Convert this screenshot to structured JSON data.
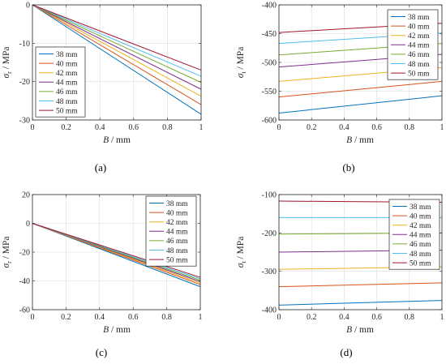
{
  "figure": {
    "panels": [
      "(a)",
      "(b)",
      "(c)",
      "(d)"
    ]
  },
  "colors": [
    "#0072bd",
    "#d95319",
    "#edb120",
    "#7e2f8e",
    "#77ac30",
    "#4dbeee",
    "#a2142f"
  ],
  "chart_data": [
    {
      "id": "a",
      "type": "line",
      "panel_label": "(a)",
      "xlabel_main": "B",
      "xlabel_unit": " / mm",
      "ylabel_main": "σ",
      "ylabel_sub": "r",
      "ylabel_unit": " / MPa",
      "xlim": [
        0,
        1
      ],
      "ylim": [
        -30,
        0
      ],
      "xticks": [
        0,
        0.2,
        0.4,
        0.6,
        0.8,
        1
      ],
      "xtick_labels": [
        "0",
        "0.2",
        "0.4",
        "0.6",
        "0.8",
        "1"
      ],
      "yticks": [
        0,
        -10,
        -20,
        -30
      ],
      "ytick_labels": [
        "0",
        "-10",
        "-20",
        "-30"
      ],
      "grid": true,
      "legend_position": "bottom-left",
      "series": [
        {
          "name": "38 mm",
          "x": [
            0,
            1
          ],
          "y": [
            0,
            -28.5
          ]
        },
        {
          "name": "40 mm",
          "x": [
            0,
            1
          ],
          "y": [
            0,
            -26.0
          ]
        },
        {
          "name": "42 mm",
          "x": [
            0,
            1
          ],
          "y": [
            0,
            -23.8
          ]
        },
        {
          "name": "44 mm",
          "x": [
            0,
            1
          ],
          "y": [
            0,
            -22.0
          ]
        },
        {
          "name": "46 mm",
          "x": [
            0,
            1
          ],
          "y": [
            0,
            -20.2
          ]
        },
        {
          "name": "48 mm",
          "x": [
            0,
            1
          ],
          "y": [
            0,
            -18.6
          ]
        },
        {
          "name": "50 mm",
          "x": [
            0,
            1
          ],
          "y": [
            0,
            -17.0
          ]
        }
      ]
    },
    {
      "id": "b",
      "type": "line",
      "panel_label": "(b)",
      "xlabel_main": "B",
      "xlabel_unit": " / mm",
      "ylabel_main": "σ",
      "ylabel_sub": "t",
      "ylabel_unit": " / MPa",
      "xlim": [
        0,
        1
      ],
      "ylim": [
        -600,
        -400
      ],
      "xticks": [
        0,
        0.2,
        0.4,
        0.6,
        0.8,
        1
      ],
      "xtick_labels": [
        "0",
        "0.2",
        "0.4",
        "0.6",
        "0.8",
        "1"
      ],
      "yticks": [
        -400,
        -450,
        -500,
        -550,
        -600
      ],
      "ytick_labels": [
        "-400",
        "-450",
        "-500",
        "-550",
        "-600"
      ],
      "grid": true,
      "legend_position": "top-right",
      "series": [
        {
          "name": "38 mm",
          "x": [
            0,
            1
          ],
          "y": [
            -588,
            -558
          ]
        },
        {
          "name": "40 mm",
          "x": [
            0,
            1
          ],
          "y": [
            -560,
            -533
          ]
        },
        {
          "name": "42 mm",
          "x": [
            0,
            1
          ],
          "y": [
            -533,
            -509
          ]
        },
        {
          "name": "44 mm",
          "x": [
            0,
            1
          ],
          "y": [
            -508,
            -486
          ]
        },
        {
          "name": "46 mm",
          "x": [
            0,
            1
          ],
          "y": [
            -487,
            -467
          ]
        },
        {
          "name": "48 mm",
          "x": [
            0,
            1
          ],
          "y": [
            -467,
            -449
          ]
        },
        {
          "name": "50 mm",
          "x": [
            0,
            1
          ],
          "y": [
            -448,
            -432
          ]
        }
      ]
    },
    {
      "id": "c",
      "type": "line",
      "panel_label": "(c)",
      "xlabel_main": "B",
      "xlabel_unit": " / mm",
      "ylabel_main": "σ",
      "ylabel_sub": "r",
      "ylabel_unit": " / MPa",
      "xlim": [
        0,
        1
      ],
      "ylim": [
        -60,
        20
      ],
      "xticks": [
        0,
        0.2,
        0.4,
        0.6,
        0.8,
        1
      ],
      "xtick_labels": [
        "0",
        "0.2",
        "0.4",
        "0.6",
        "0.8",
        "1"
      ],
      "yticks": [
        20,
        0,
        -20,
        -40,
        -60
      ],
      "ytick_labels": [
        "20",
        "0",
        "-20",
        "-40",
        "-60"
      ],
      "grid": true,
      "legend_position": "top-right",
      "series": [
        {
          "name": "38 mm",
          "x": [
            0,
            1
          ],
          "y": [
            0,
            -44
          ]
        },
        {
          "name": "40 mm",
          "x": [
            0,
            1
          ],
          "y": [
            0,
            -42.5
          ]
        },
        {
          "name": "42 mm",
          "x": [
            0,
            1
          ],
          "y": [
            0,
            -41.5
          ]
        },
        {
          "name": "44 mm",
          "x": [
            0,
            1
          ],
          "y": [
            0,
            -40.5
          ]
        },
        {
          "name": "46 mm",
          "x": [
            0,
            1
          ],
          "y": [
            0,
            -39.5
          ]
        },
        {
          "name": "48 mm",
          "x": [
            0,
            1
          ],
          "y": [
            0,
            -38.5
          ]
        },
        {
          "name": "50 mm",
          "x": [
            0,
            1
          ],
          "y": [
            0,
            -37.5
          ]
        }
      ]
    },
    {
      "id": "d",
      "type": "line",
      "panel_label": "(d)",
      "xlabel_main": "B",
      "xlabel_unit": " / mm",
      "ylabel_main": "σ",
      "ylabel_sub": "t",
      "ylabel_unit": " / MPa",
      "xlim": [
        0,
        1
      ],
      "ylim": [
        -400,
        -100
      ],
      "xticks": [
        0,
        0.2,
        0.4,
        0.6,
        0.8,
        1
      ],
      "xtick_labels": [
        "0",
        "0.2",
        "0.4",
        "0.6",
        "0.8",
        "1"
      ],
      "yticks": [
        -100,
        -200,
        -300,
        -400
      ],
      "ytick_labels": [
        "-100",
        "-200",
        "-300",
        "-400"
      ],
      "grid": true,
      "legend_position": "top-right",
      "series": [
        {
          "name": "38 mm",
          "x": [
            0,
            1
          ],
          "y": [
            -388,
            -376
          ]
        },
        {
          "name": "40 mm",
          "x": [
            0,
            1
          ],
          "y": [
            -340,
            -330
          ]
        },
        {
          "name": "42 mm",
          "x": [
            0,
            1
          ],
          "y": [
            -295,
            -288
          ]
        },
        {
          "name": "44 mm",
          "x": [
            0,
            1
          ],
          "y": [
            -250,
            -245
          ]
        },
        {
          "name": "46 mm",
          "x": [
            0,
            1
          ],
          "y": [
            -203,
            -200
          ]
        },
        {
          "name": "48 mm",
          "x": [
            0,
            1
          ],
          "y": [
            -160,
            -160
          ]
        },
        {
          "name": "50 mm",
          "x": [
            0,
            1
          ],
          "y": [
            -117,
            -120
          ]
        }
      ]
    }
  ]
}
